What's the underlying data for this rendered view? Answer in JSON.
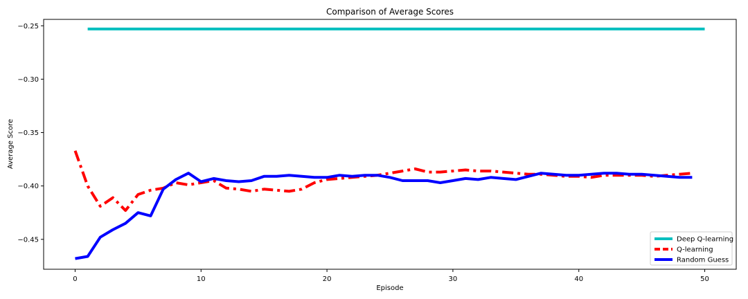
{
  "chart_data": {
    "type": "line",
    "title": "Comparison of Average Scores",
    "xlabel": "Episode",
    "ylabel": "Average Score",
    "xlim": [
      -2.5,
      52.5
    ],
    "ylim": [
      -0.478,
      -0.244
    ],
    "xticks": [
      0,
      10,
      20,
      30,
      40,
      50
    ],
    "yticks": [
      -0.45,
      -0.4,
      -0.35,
      -0.3,
      -0.25
    ],
    "ytick_labels": [
      "−0.45",
      "−0.40",
      "−0.35",
      "−0.30",
      "−0.25"
    ],
    "grid": false,
    "legend_position": "lower-right",
    "series": [
      {
        "name": "Deep Q-learning",
        "color": "#00bfbf",
        "style": "solid",
        "x": [
          1,
          50
        ],
        "y": [
          -0.253,
          -0.253
        ]
      },
      {
        "name": "Q-learning",
        "color": "#ff0000",
        "style": "dashdot",
        "x": [
          0,
          1,
          2,
          3,
          4,
          5,
          6,
          7,
          8,
          9,
          10,
          11,
          12,
          13,
          14,
          15,
          16,
          17,
          18,
          19,
          20,
          21,
          22,
          23,
          24,
          25,
          26,
          27,
          28,
          29,
          30,
          31,
          32,
          33,
          34,
          35,
          36,
          37,
          38,
          39,
          40,
          41,
          42,
          43,
          44,
          45,
          46,
          47,
          48,
          49
        ],
        "y": [
          -0.367,
          -0.4,
          -0.419,
          -0.411,
          -0.423,
          -0.408,
          -0.404,
          -0.402,
          -0.397,
          -0.399,
          -0.397,
          -0.395,
          -0.402,
          -0.403,
          -0.405,
          -0.403,
          -0.404,
          -0.405,
          -0.403,
          -0.397,
          -0.394,
          -0.393,
          -0.392,
          -0.391,
          -0.39,
          -0.388,
          -0.386,
          -0.384,
          -0.387,
          -0.387,
          -0.386,
          -0.385,
          -0.386,
          -0.386,
          -0.387,
          -0.388,
          -0.389,
          -0.389,
          -0.39,
          -0.391,
          -0.391,
          -0.392,
          -0.39,
          -0.39,
          -0.39,
          -0.39,
          -0.391,
          -0.39,
          -0.389,
          -0.388
        ]
      },
      {
        "name": "Random Guess",
        "color": "#0000ff",
        "style": "solid",
        "x": [
          0,
          1,
          2,
          3,
          4,
          5,
          6,
          7,
          8,
          9,
          10,
          11,
          12,
          13,
          14,
          15,
          16,
          17,
          18,
          19,
          20,
          21,
          22,
          23,
          24,
          25,
          26,
          27,
          28,
          29,
          30,
          31,
          32,
          33,
          34,
          35,
          36,
          37,
          38,
          39,
          40,
          41,
          42,
          43,
          44,
          45,
          46,
          47,
          48,
          49
        ],
        "y": [
          -0.468,
          -0.466,
          -0.448,
          -0.441,
          -0.435,
          -0.425,
          -0.428,
          -0.403,
          -0.394,
          -0.388,
          -0.396,
          -0.393,
          -0.395,
          -0.396,
          -0.395,
          -0.391,
          -0.391,
          -0.39,
          -0.391,
          -0.392,
          -0.392,
          -0.39,
          -0.391,
          -0.39,
          -0.39,
          -0.392,
          -0.395,
          -0.395,
          -0.395,
          -0.397,
          -0.395,
          -0.393,
          -0.394,
          -0.392,
          -0.393,
          -0.394,
          -0.391,
          -0.388,
          -0.389,
          -0.39,
          -0.39,
          -0.389,
          -0.388,
          -0.388,
          -0.389,
          -0.389,
          -0.39,
          -0.391,
          -0.392,
          -0.392
        ]
      }
    ]
  }
}
